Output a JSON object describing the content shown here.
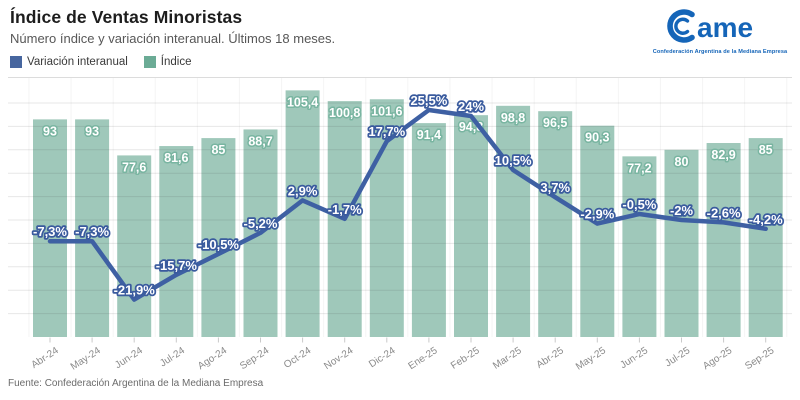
{
  "header": {
    "title": "Índice de Ventas Minoristas",
    "subtitle": "Número índice y variación interanual. Últimos 18 meses."
  },
  "legend": [
    {
      "label": "Variación interanual",
      "color": "#47669f",
      "series": "yoy_line"
    },
    {
      "label": "Índice",
      "color": "#6bab95",
      "series": "index_bars"
    }
  ],
  "logo": {
    "word": "ame",
    "caption": "Confederación Argentina de la Mediana Empresa",
    "color": "#1565b8"
  },
  "footer": {
    "source": "Fuente: Confederación Argentina de la Mediana Empresa"
  },
  "chart_data": {
    "type": "bar+line",
    "title": "Índice de Ventas Minoristas",
    "subtitle": "Número índice y variación interanual. Últimos 18 meses.",
    "categories": [
      "Abr-24",
      "May-24",
      "Jun-24",
      "Jul-24",
      "Ago-24",
      "Sep-24",
      "Oct-24",
      "Nov-24",
      "Dic-24",
      "Ene-25",
      "Feb-25",
      "Mar-25",
      "Abr-25",
      "May-25",
      "Jun-25",
      "Jul-25",
      "Ago-25",
      "Sep-25"
    ],
    "series": [
      {
        "name": "Índice",
        "type": "bar",
        "color": "#9fc8ba",
        "label_color": "#ffffff",
        "label_stroke": "#79b5a1",
        "values": [
          93,
          93,
          77.6,
          81.6,
          85,
          88.7,
          105.4,
          100.8,
          101.6,
          91.4,
          94.8,
          98.8,
          96.5,
          90.3,
          77.2,
          80,
          82.9,
          85
        ],
        "labels": [
          "93",
          "93",
          "77,6",
          "81,6",
          "85",
          "88,7",
          "105,4",
          "100,8",
          "101,6",
          "91,4",
          "94,8",
          "98,8",
          "96,5",
          "90,3",
          "77,2",
          "80",
          "82,9",
          "85"
        ]
      },
      {
        "name": "Variación interanual",
        "type": "line",
        "color": "#3e60a3",
        "label_color": "#ffffff",
        "label_stroke": "#3a5b9e",
        "values": [
          -7.3,
          -7.3,
          -21.9,
          -15.7,
          -10.5,
          -5.2,
          2.9,
          -1.7,
          17.7,
          25.5,
          24,
          10.5,
          3.7,
          -2.9,
          -0.5,
          -2,
          -2.6,
          -4.2
        ],
        "labels": [
          "-7,3%",
          "-7,3%",
          "-21,9%",
          "-15,7%",
          "-10,5%",
          "-5,2%",
          "2,9%",
          "-1,7%",
          "17,7%",
          "25,5%",
          "24%",
          "10,5%",
          "3,7%",
          "-2,9%",
          "-0,5%",
          "-2%",
          "-2,6%",
          "-4,2%"
        ]
      }
    ],
    "bar_axis": {
      "min": 0,
      "max": 112,
      "gridline_step": 10
    },
    "line_axis": {
      "unit": "%",
      "approx_range": [
        -25,
        30
      ]
    },
    "grid": true,
    "legend_position": "top-left",
    "x_tick_rotation": -33
  }
}
